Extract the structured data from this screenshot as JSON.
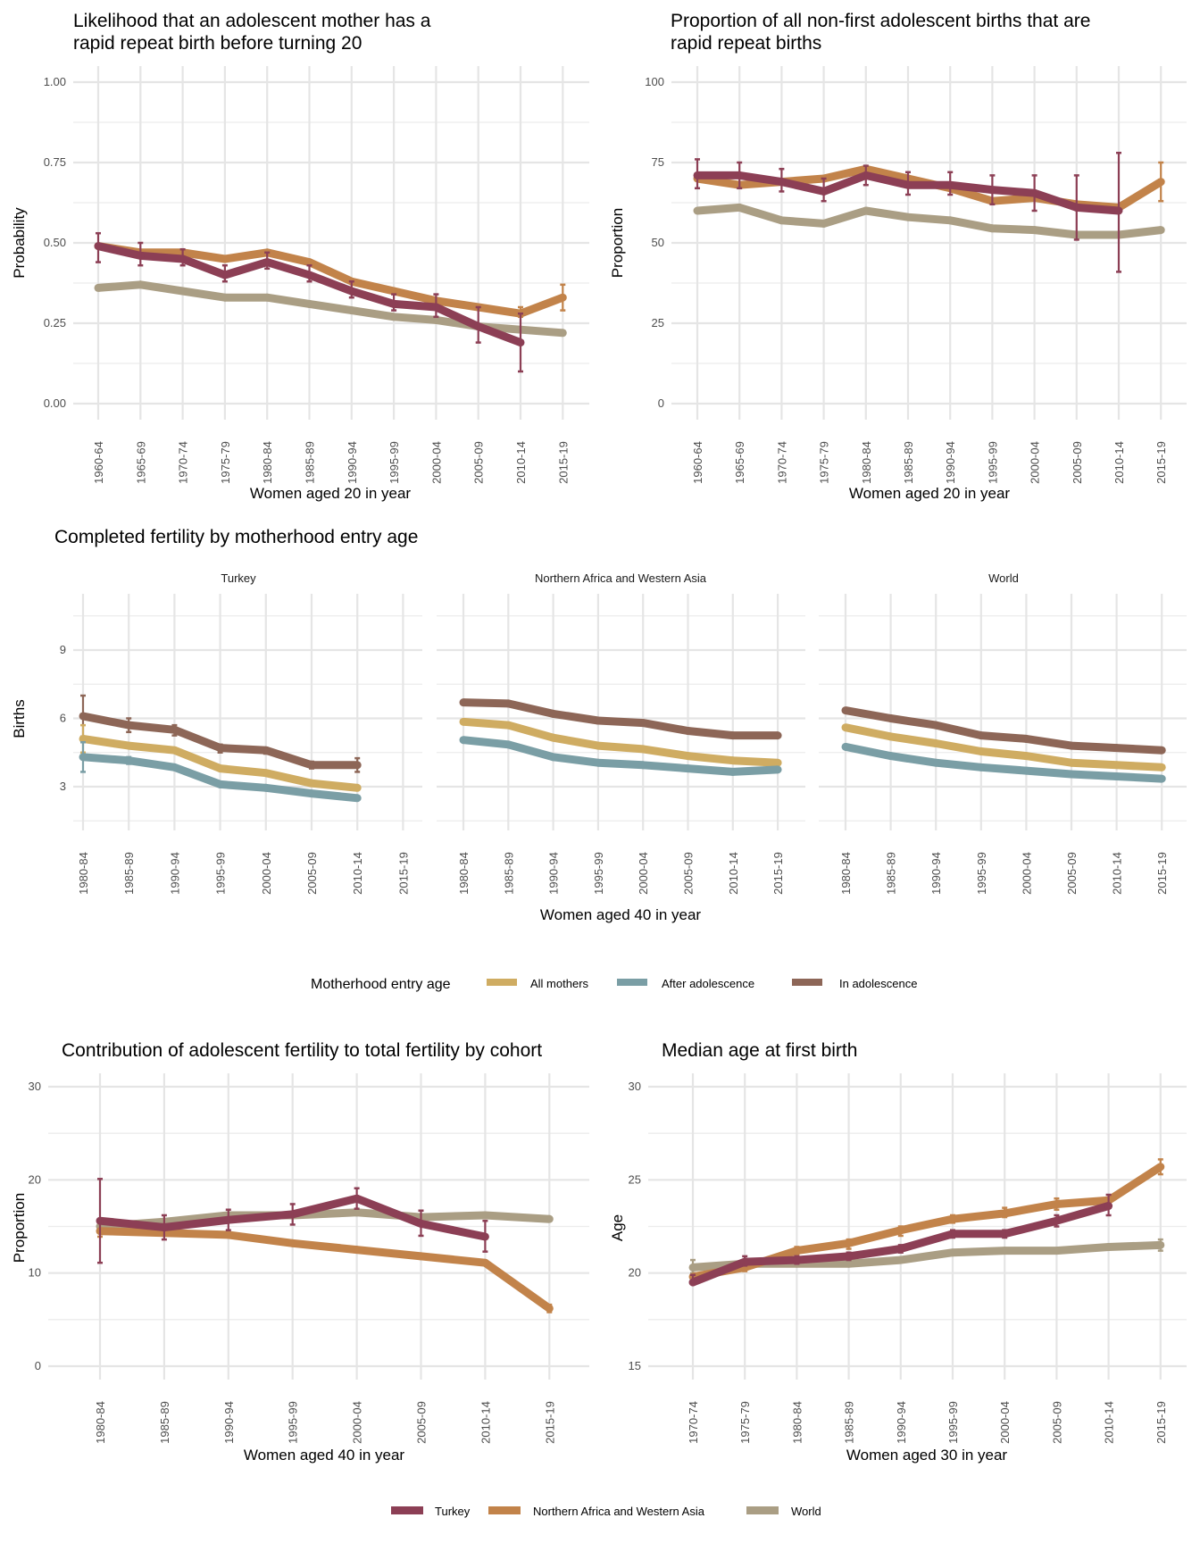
{
  "colors": {
    "Turkey": "#8c3f55",
    "Northern Africa and Western Asia": "#c2834a",
    "World": "#aa9e84",
    "All mothers": "#cfac62",
    "After adolescence": "#7a9ea5",
    "In adolescence": "#8d6657"
  },
  "legend_regions": {
    "items": [
      "Turkey",
      "Northern Africa and Western Asia",
      "World"
    ]
  },
  "legend_entry": {
    "title": "Motherhood entry age",
    "items": [
      "All mothers",
      "After adolescence",
      "In adolescence"
    ]
  },
  "chart_data": [
    {
      "id": "rapid-repeat-likelihood",
      "type": "line",
      "title": "Likelihood that an adolescent mother has a rapid repeat birth before turning 20",
      "title_lines": [
        "Likelihood that an adolescent mother has a",
        "rapid repeat birth before turning 20"
      ],
      "xlabel": "Women aged 20 in year",
      "ylabel": "Probability",
      "ylim": [
        0,
        1
      ],
      "yticks": [
        0,
        0.25,
        0.5,
        0.75,
        1.0
      ],
      "ytick_labels": [
        "0.00",
        "0.25",
        "0.50",
        "0.75",
        "1.00"
      ],
      "grid": true,
      "categories": [
        "1960-64",
        "1965-69",
        "1970-74",
        "1975-79",
        "1980-84",
        "1985-89",
        "1990-94",
        "1995-99",
        "2000-04",
        "2005-09",
        "2010-14",
        "2015-19"
      ],
      "series": [
        {
          "name": "World",
          "values": [
            0.36,
            0.37,
            0.35,
            0.33,
            0.33,
            0.31,
            0.29,
            0.27,
            0.26,
            0.24,
            0.23,
            0.22
          ]
        },
        {
          "name": "Northern Africa and Western Asia",
          "values": [
            0.49,
            0.47,
            0.47,
            0.45,
            0.47,
            0.44,
            0.38,
            0.35,
            0.32,
            0.3,
            0.28,
            0.33
          ],
          "err_low": [
            null,
            null,
            null,
            null,
            null,
            null,
            null,
            null,
            null,
            null,
            0.27,
            0.29
          ],
          "err_high": [
            null,
            null,
            null,
            null,
            null,
            null,
            null,
            null,
            null,
            null,
            0.3,
            0.37
          ]
        },
        {
          "name": "Turkey",
          "values": [
            0.49,
            0.46,
            0.45,
            0.4,
            0.44,
            0.4,
            0.35,
            0.31,
            0.3,
            0.24,
            0.19,
            null
          ],
          "err_low": [
            0.44,
            0.43,
            0.43,
            0.38,
            0.42,
            0.38,
            0.33,
            0.29,
            0.27,
            0.19,
            0.1,
            null
          ],
          "err_high": [
            0.53,
            0.5,
            0.48,
            0.43,
            0.47,
            0.43,
            0.38,
            0.34,
            0.34,
            0.3,
            0.28,
            null
          ]
        }
      ]
    },
    {
      "id": "rapid-repeat-proportion",
      "type": "line",
      "title": "Proportion of all non-first adolescent births that are rapid repeat births",
      "title_lines": [
        "Proportion of all non-first adolescent births that are",
        "rapid repeat births"
      ],
      "xlabel": "Women aged 20 in year",
      "ylabel": "Proportion",
      "ylim": [
        0,
        100
      ],
      "yticks": [
        0,
        25,
        50,
        75,
        100
      ],
      "ytick_labels": [
        "0",
        "25",
        "50",
        "75",
        "100"
      ],
      "grid": true,
      "categories": [
        "1960-64",
        "1965-69",
        "1970-74",
        "1975-79",
        "1980-84",
        "1985-89",
        "1990-94",
        "1995-99",
        "2000-04",
        "2005-09",
        "2010-14",
        "2015-19"
      ],
      "series": [
        {
          "name": "World",
          "values": [
            60,
            61,
            57,
            56,
            60,
            58,
            57,
            54.5,
            54,
            52.5,
            52.5,
            54
          ]
        },
        {
          "name": "Northern Africa and Western Asia",
          "values": [
            70,
            68,
            69,
            70,
            73,
            70,
            67,
            63,
            64,
            62,
            61,
            69
          ],
          "err_low": [
            null,
            null,
            null,
            null,
            null,
            null,
            null,
            null,
            null,
            null,
            null,
            63
          ],
          "err_high": [
            null,
            null,
            null,
            null,
            null,
            null,
            null,
            null,
            null,
            null,
            null,
            75
          ]
        },
        {
          "name": "Turkey",
          "values": [
            71,
            71,
            69,
            66,
            71,
            68,
            68,
            66.5,
            65.5,
            61,
            60,
            null
          ],
          "err_low": [
            67,
            67,
            66,
            63,
            68,
            65,
            65,
            62,
            60,
            51,
            41,
            null
          ],
          "err_high": [
            76,
            75,
            73,
            70,
            74,
            72,
            72,
            71,
            71,
            71,
            78,
            null
          ]
        }
      ]
    },
    {
      "id": "completed-fertility",
      "type": "line",
      "title": "Completed fertility by motherhood entry age",
      "xlabel": "Women aged 40 in year",
      "ylabel": "Births",
      "ylim": [
        0.9,
        11.4
      ],
      "yticks": [
        3,
        6,
        9
      ],
      "ytick_labels": [
        "3",
        "6",
        "9"
      ],
      "grid": true,
      "categories": [
        "1980-84",
        "1985-89",
        "1990-94",
        "1995-99",
        "2000-04",
        "2005-09",
        "2010-14",
        "2015-19"
      ],
      "panels": [
        {
          "name": "Turkey",
          "series": [
            {
              "name": "In adolescence",
              "values": [
                6.1,
                5.7,
                5.5,
                4.7,
                4.6,
                3.95,
                3.95,
                null
              ],
              "err_low": [
                5.2,
                5.4,
                5.25,
                4.5,
                4.45,
                3.8,
                3.65,
                null
              ],
              "err_high": [
                7.0,
                6.0,
                5.7,
                4.85,
                4.7,
                4.1,
                4.25,
                null
              ]
            },
            {
              "name": "All mothers",
              "values": [
                5.1,
                4.8,
                4.6,
                3.8,
                3.6,
                3.15,
                2.95,
                null
              ],
              "err_low": [
                4.5,
                null,
                null,
                null,
                null,
                null,
                null,
                null
              ],
              "err_high": [
                5.7,
                null,
                null,
                null,
                null,
                null,
                null,
                null
              ]
            },
            {
              "name": "After adolescence",
              "values": [
                4.3,
                4.15,
                3.85,
                3.1,
                2.95,
                2.7,
                2.5,
                null
              ],
              "err_low": [
                3.65,
                4.0,
                null,
                null,
                null,
                null,
                null,
                null
              ],
              "err_high": [
                4.95,
                4.3,
                null,
                null,
                null,
                null,
                null,
                null
              ]
            }
          ]
        },
        {
          "name": "Northern Africa and Western Asia",
          "series": [
            {
              "name": "In adolescence",
              "values": [
                6.7,
                6.65,
                6.2,
                5.9,
                5.8,
                5.45,
                5.25,
                5.25
              ]
            },
            {
              "name": "All mothers",
              "values": [
                5.85,
                5.7,
                5.15,
                4.8,
                4.65,
                4.35,
                4.15,
                4.05
              ]
            },
            {
              "name": "After adolescence",
              "values": [
                5.05,
                4.85,
                4.3,
                4.05,
                3.95,
                3.8,
                3.65,
                3.75
              ]
            }
          ]
        },
        {
          "name": "World",
          "series": [
            {
              "name": "In adolescence",
              "values": [
                6.35,
                6.0,
                5.7,
                5.25,
                5.1,
                4.8,
                4.7,
                4.6
              ]
            },
            {
              "name": "All mothers",
              "values": [
                5.6,
                5.2,
                4.9,
                4.55,
                4.35,
                4.05,
                3.95,
                3.85
              ]
            },
            {
              "name": "After adolescence",
              "values": [
                4.75,
                4.35,
                4.05,
                3.85,
                3.7,
                3.55,
                3.45,
                3.35
              ]
            }
          ]
        }
      ]
    },
    {
      "id": "adolescent-contribution",
      "type": "line",
      "title": "Contribution of adolescent fertility to total fertility by cohort",
      "xlabel": "Women aged 40 in year",
      "ylabel": "Proportion",
      "ylim": [
        0,
        30
      ],
      "yticks": [
        0,
        10,
        20,
        30
      ],
      "ytick_labels": [
        "0",
        "10",
        "20",
        "30"
      ],
      "grid": true,
      "categories": [
        "1980-84",
        "1985-89",
        "1990-94",
        "1995-99",
        "2000-04",
        "2005-09",
        "2010-14",
        "2015-19"
      ],
      "series": [
        {
          "name": "World",
          "values": [
            15.0,
            15.5,
            16.2,
            16.2,
            16.5,
            16.0,
            16.2,
            15.8
          ]
        },
        {
          "name": "Northern Africa and Western Asia",
          "values": [
            14.5,
            14.3,
            14.1,
            13.2,
            12.5,
            11.8,
            11.1,
            6.2
          ],
          "err_low": [
            13.9,
            null,
            null,
            null,
            null,
            null,
            null,
            5.8
          ],
          "err_high": [
            15.5,
            null,
            null,
            null,
            null,
            null,
            null,
            6.6
          ]
        },
        {
          "name": "Turkey",
          "values": [
            15.6,
            14.9,
            15.7,
            16.3,
            18.0,
            15.3,
            13.9,
            null
          ],
          "err_low": [
            11.1,
            13.6,
            14.6,
            15.2,
            16.9,
            14.0,
            12.3,
            null
          ],
          "err_high": [
            20.1,
            16.2,
            16.8,
            17.4,
            19.1,
            16.7,
            15.6,
            null
          ]
        }
      ]
    },
    {
      "id": "median-age-first-birth",
      "type": "line",
      "title": "Median age at first birth",
      "xlabel": "Women aged 30 in year",
      "ylabel": "Age",
      "ylim": [
        15,
        30
      ],
      "yticks": [
        15,
        20,
        25,
        30
      ],
      "ytick_labels": [
        "15",
        "20",
        "25",
        "30"
      ],
      "grid": true,
      "categories": [
        "1970-74",
        "1975-79",
        "1980-84",
        "1985-89",
        "1990-94",
        "1995-99",
        "2000-04",
        "2005-09",
        "2010-14",
        "2015-19"
      ],
      "series": [
        {
          "name": "World",
          "values": [
            20.3,
            20.5,
            20.5,
            20.5,
            20.7,
            21.1,
            21.2,
            21.2,
            21.4,
            21.5
          ],
          "err_low": [
            20.0,
            null,
            null,
            null,
            null,
            null,
            null,
            null,
            null,
            21.2
          ],
          "err_high": [
            20.7,
            null,
            null,
            null,
            null,
            null,
            null,
            null,
            null,
            21.8
          ]
        },
        {
          "name": "Northern Africa and Western Asia",
          "values": [
            19.8,
            20.3,
            21.2,
            21.6,
            22.3,
            22.9,
            23.2,
            23.7,
            23.9,
            25.7
          ],
          "err_low": [
            null,
            20.1,
            21.0,
            21.3,
            22.0,
            22.7,
            23.0,
            23.4,
            null,
            25.3
          ],
          "err_high": [
            null,
            20.5,
            21.4,
            21.8,
            22.5,
            23.1,
            23.5,
            24.0,
            null,
            26.1
          ]
        },
        {
          "name": "Turkey",
          "values": [
            19.5,
            20.6,
            20.7,
            20.9,
            21.3,
            22.1,
            22.1,
            22.8,
            23.6,
            null
          ],
          "err_low": [
            19.4,
            20.4,
            20.5,
            20.7,
            21.1,
            21.9,
            21.9,
            22.5,
            23.1,
            null
          ],
          "err_high": [
            19.9,
            20.9,
            20.9,
            21.1,
            21.5,
            22.3,
            22.3,
            23.1,
            24.2,
            null
          ]
        }
      ]
    }
  ]
}
